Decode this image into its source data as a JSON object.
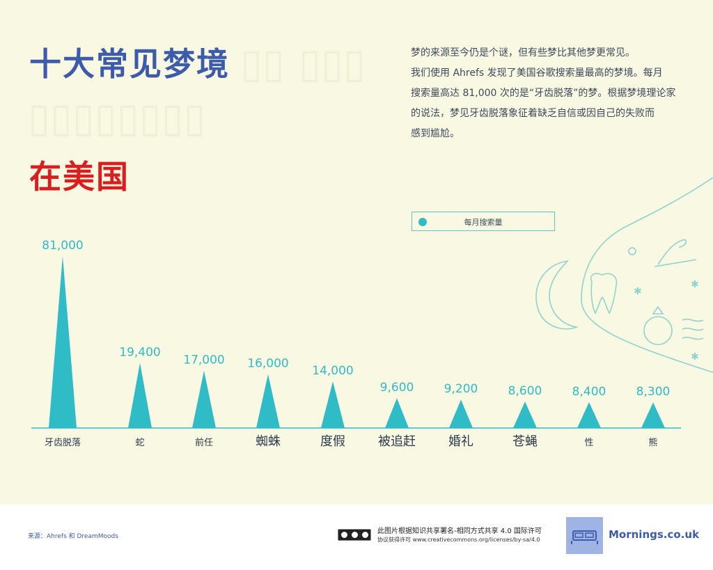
{
  "header": {
    "title": "十大常见梦境",
    "subtitle": "在美国"
  },
  "intro": {
    "lines": [
      "梦的来源至今仍是个谜，但有些梦比其他梦更常见。",
      "我们使用 Ahrefs 发现了美国谷歌搜索量最高的梦境。每月",
      "搜索量高达 81,000 次的是“牙齿脱落”的梦。根据梦境理论家",
      "的说法，梦见牙齿脱落象征着缺乏自信或因自己的失败而",
      "感到尴尬。"
    ]
  },
  "legend": {
    "label": "每月搜索量",
    "color": "#2fbcc6"
  },
  "chart_data": {
    "type": "bar",
    "mark": "triangle",
    "categories": [
      "牙齿脱落",
      "蛇",
      "前任",
      "蜘蛛",
      "度假",
      "被追赶",
      "婚礼",
      "苍蝇",
      "性",
      "熊"
    ],
    "values": [
      81000,
      19400,
      17000,
      16000,
      14000,
      9600,
      9200,
      8600,
      8400,
      8300
    ],
    "value_labels": [
      "81,000",
      "19,400",
      "17,000",
      "16,000",
      "14,000",
      "9,600",
      "9,200",
      "8,600",
      "8,400",
      "8,300"
    ],
    "series": [
      {
        "name": "每月搜索量",
        "values": [
          81000,
          19400,
          17000,
          16000,
          14000,
          9600,
          9200,
          8600,
          8400,
          8300
        ]
      }
    ],
    "ylim": [
      0,
      81000
    ],
    "grid": false,
    "legend_position": "top-right",
    "bar_color": "#2fbcc6",
    "label_color": "#2fbcc6"
  },
  "footer": {
    "source": "来源：Ahrefs 和 DreamMoods",
    "license_line1": "此图片根据知识共享署名-相同方式共享 4.0 国际许可",
    "license_line2": "协议获得许可 www.creativecommons.org/licenses/by-sa/4.0",
    "brand": "Mornings.co.uk",
    "cc_icon": "creative-commons-by-sa-icon",
    "brand_icon": "bed-icon"
  },
  "colors": {
    "title": "#3d5bab",
    "subtitle": "#d81e1e",
    "accent": "#2fbcc6",
    "background": "#f9f8e2"
  }
}
